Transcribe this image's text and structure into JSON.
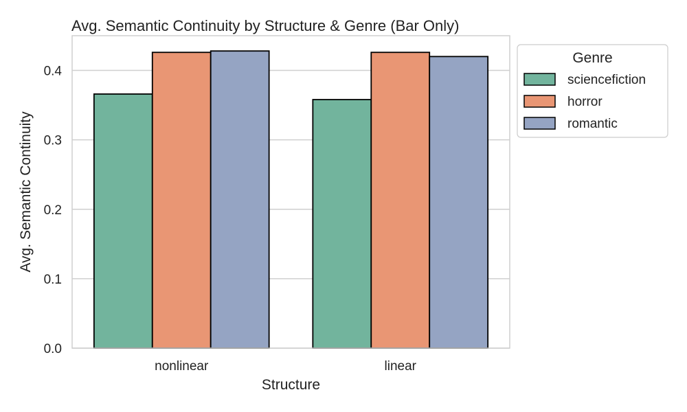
{
  "chart_data": {
    "type": "bar",
    "title": "Avg. Semantic Continuity by Structure & Genre (Bar Only)",
    "xlabel": "Structure",
    "ylabel": "Avg. Semantic Continuity",
    "categories": [
      "nonlinear",
      "linear"
    ],
    "series": [
      {
        "name": "sciencefiction",
        "color": "#72b49d",
        "values": [
          0.366,
          0.358
        ]
      },
      {
        "name": "horror",
        "color": "#e99674",
        "values": [
          0.426,
          0.426
        ]
      },
      {
        "name": "romantic",
        "color": "#95a4c3",
        "values": [
          0.428,
          0.42
        ]
      }
    ],
    "ylim": [
      0,
      0.45
    ],
    "yticks": [
      0.0,
      0.1,
      0.2,
      0.3,
      0.4
    ],
    "ytick_labels": [
      "0.0",
      "0.1",
      "0.2",
      "0.3",
      "0.4"
    ],
    "grid": true,
    "legend": {
      "title": "Genre",
      "placement": "outside-top-right"
    }
  }
}
